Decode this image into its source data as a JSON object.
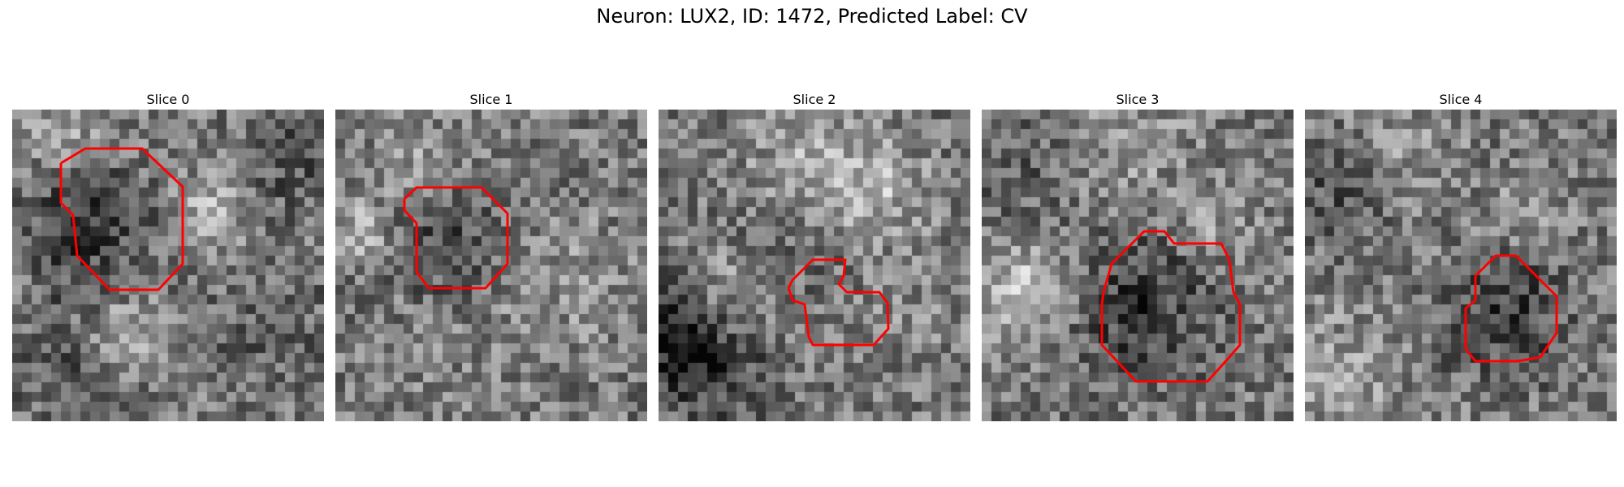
{
  "title": "Neuron: LUX2, ID: 1472, Predicted Label: CV",
  "panels": [
    {
      "label": "Slice 0"
    },
    {
      "label": "Slice 1"
    },
    {
      "label": "Slice 2"
    },
    {
      "label": "Slice 3"
    },
    {
      "label": "Slice 4"
    }
  ],
  "colors": {
    "contour": "#ff0000"
  }
}
